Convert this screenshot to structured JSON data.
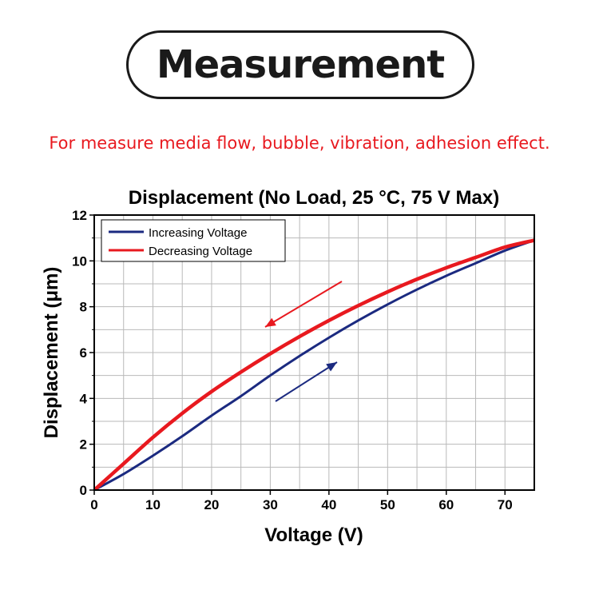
{
  "header": {
    "badge_text": "Measurement",
    "subtitle": "For measure media flow, bubble, vibration, adhesion effect."
  },
  "colors": {
    "increasing": "#1b2a80",
    "decreasing": "#e8191f",
    "grid": "#b9b9b9",
    "subtitle": "#e8191f"
  },
  "chart_data": {
    "type": "line",
    "title": "Displacement (No Load, 25 °C, 75 V Max)",
    "xlabel": "Voltage (V)",
    "ylabel": "Displacement (μm)",
    "xlim": [
      0,
      75
    ],
    "ylim": [
      0,
      12
    ],
    "xticks": [
      0,
      10,
      20,
      30,
      40,
      50,
      60,
      70
    ],
    "yticks": [
      0,
      2,
      4,
      6,
      8,
      10,
      12
    ],
    "grid": true,
    "legend_position": "top-left",
    "series": [
      {
        "name": "Increasing Voltage",
        "x": [
          0,
          5,
          10,
          15,
          20,
          25,
          30,
          35,
          40,
          45,
          50,
          55,
          60,
          65,
          70,
          75
        ],
        "y": [
          0,
          0.7,
          1.5,
          2.35,
          3.25,
          4.1,
          5.0,
          5.85,
          6.65,
          7.4,
          8.1,
          8.75,
          9.35,
          9.9,
          10.45,
          10.9
        ]
      },
      {
        "name": "Decreasing Voltage",
        "x": [
          0,
          5,
          10,
          15,
          20,
          25,
          30,
          35,
          40,
          45,
          50,
          55,
          60,
          65,
          70,
          75
        ],
        "y": [
          0,
          1.15,
          2.3,
          3.35,
          4.3,
          5.15,
          5.95,
          6.7,
          7.4,
          8.05,
          8.65,
          9.2,
          9.7,
          10.15,
          10.6,
          10.9
        ]
      }
    ],
    "annotations": [
      {
        "type": "arrow",
        "series": "Decreasing Voltage",
        "direction": "down-left"
      },
      {
        "type": "arrow",
        "series": "Increasing Voltage",
        "direction": "up-right"
      }
    ]
  }
}
